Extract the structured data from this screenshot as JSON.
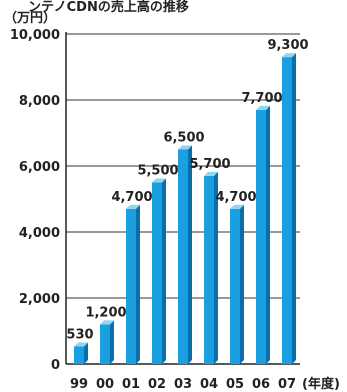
{
  "title": "ンテノCDNの売上高の推移",
  "chart_data": {
    "type": "bar",
    "ylabel": "（万円）",
    "xlabel": "(年度)",
    "categories": [
      "99",
      "00",
      "01",
      "02",
      "03",
      "04",
      "05",
      "06",
      "07"
    ],
    "values": [
      530,
      1200,
      4700,
      5500,
      6500,
      5700,
      4700,
      7700,
      9300
    ],
    "value_labels": [
      "530",
      "1,200",
      "4,700",
      "5,500",
      "6,500",
      "5,700",
      "4,700",
      "7,700",
      "9,300"
    ],
    "y_ticks": [
      0,
      2000,
      4000,
      6000,
      8000,
      10000
    ],
    "y_tick_labels": [
      "0",
      "2,000",
      "4,000",
      "6,000",
      "8,000",
      "10,000"
    ],
    "ylim": [
      0,
      10000
    ],
    "grid": true,
    "colors": {
      "bar_front": "#1aa0e0",
      "bar_side": "#0a6fa8",
      "bar_top": "#8fd6f5",
      "axis": "#222222"
    }
  }
}
